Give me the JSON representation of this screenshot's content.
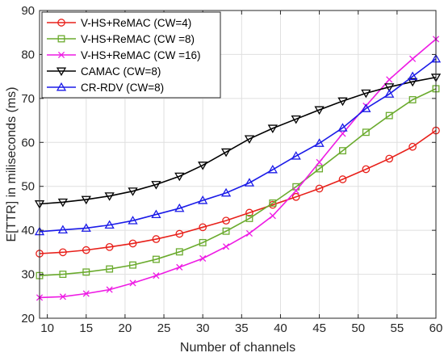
{
  "chart_data": {
    "type": "line",
    "xlabel": "Number of channels",
    "ylabel": "E[TTR] in miliseconds (ms)",
    "xlim": [
      9,
      60
    ],
    "ylim": [
      20,
      90
    ],
    "xticks": [
      10,
      15,
      20,
      25,
      30,
      35,
      40,
      45,
      50,
      55,
      60
    ],
    "yticks": [
      20,
      30,
      40,
      50,
      60,
      70,
      80,
      90
    ],
    "grid": true,
    "legend_position": "top-left",
    "x": [
      9,
      12,
      15,
      18,
      21,
      24,
      27,
      30,
      33,
      36,
      39,
      42,
      45,
      48,
      51,
      54,
      57,
      60
    ],
    "series": [
      {
        "name": "V-HS+ReMAC (CW=4)",
        "color": "#e8201a",
        "marker": "circle",
        "values": [
          34.7,
          35.0,
          35.5,
          36.2,
          37.0,
          38.0,
          39.2,
          40.7,
          42.2,
          44.0,
          45.8,
          47.6,
          49.5,
          51.6,
          53.9,
          56.3,
          59.0,
          62.7
        ]
      },
      {
        "name": "V-HS+ReMAC (CW =8)",
        "color": "#6bab2e",
        "marker": "square",
        "values": [
          29.7,
          30.0,
          30.5,
          31.2,
          32.1,
          33.4,
          35.1,
          37.2,
          39.8,
          42.7,
          46.2,
          49.9,
          54.0,
          58.1,
          62.3,
          66.1,
          69.7,
          72.2
        ]
      },
      {
        "name": "V-HS+ReMAC (CW =16)",
        "color": "#ee1be4",
        "marker": "cross",
        "values": [
          24.7,
          24.9,
          25.6,
          26.5,
          28.0,
          29.7,
          31.6,
          33.6,
          36.3,
          39.3,
          43.3,
          49.0,
          55.5,
          62.0,
          68.3,
          74.3,
          79.0,
          83.5
        ]
      },
      {
        "name": "CAMAC (CW=8)",
        "color": "#000000",
        "marker": "triangle-down",
        "values": [
          46.0,
          46.4,
          47.0,
          47.8,
          48.9,
          50.4,
          52.3,
          54.8,
          57.8,
          60.8,
          63.2,
          65.3,
          67.4,
          69.4,
          71.2,
          72.6,
          73.8,
          74.8
        ]
      },
      {
        "name": "CR-RDV (CW=8)",
        "color": "#1b1be8",
        "marker": "triangle-up",
        "values": [
          39.7,
          40.1,
          40.5,
          41.2,
          42.2,
          43.6,
          45.0,
          46.8,
          48.5,
          50.8,
          53.8,
          56.9,
          59.8,
          63.3,
          67.7,
          71.0,
          75.0,
          79.0
        ]
      }
    ]
  }
}
